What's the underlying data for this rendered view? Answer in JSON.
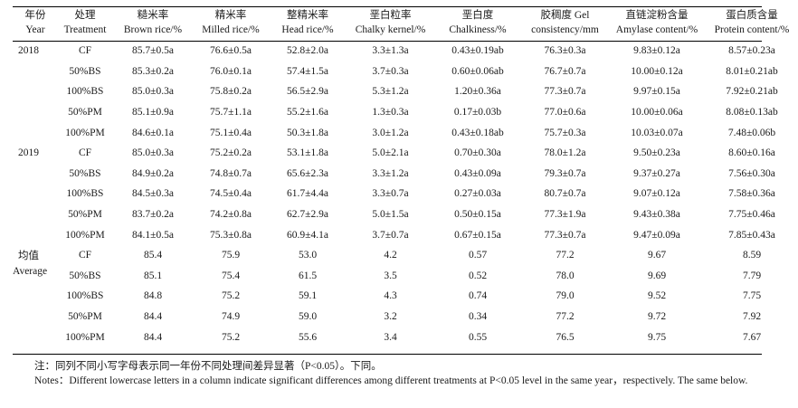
{
  "header": {
    "year": {
      "cn": "年份",
      "en": "Year"
    },
    "treatment": {
      "cn": "处理",
      "en": "Treatment"
    },
    "brown": {
      "cn": "糙米率",
      "en": "Brown rice/%"
    },
    "milled": {
      "cn": "精米率",
      "en": "Milled rice/%"
    },
    "head": {
      "cn": "整精米率",
      "en": "Head rice/%"
    },
    "chalky_kernel": {
      "cn": "垩白粒率",
      "en": "Chalky kernel/%"
    },
    "chalkiness": {
      "cn": "垩白度",
      "en": "Chalkiness/%"
    },
    "gel": {
      "cn": "胶稠度 Gel",
      "en": "consistency/mm"
    },
    "amylose": {
      "cn": "直链淀粉含量",
      "en": "Amylase content/%"
    },
    "protein": {
      "cn": "蛋白质含量",
      "en": "Protein content/%"
    }
  },
  "groups": [
    {
      "year": "2018",
      "year_en": "",
      "rows": [
        {
          "treatment": "CF",
          "values": [
            "85.7±0.5a",
            "76.6±0.5a",
            "52.8±2.0a",
            "3.3±1.3a",
            "0.43±0.19ab",
            "76.3±0.3a",
            "9.83±0.12a",
            "8.57±0.23a"
          ]
        },
        {
          "treatment": "50%BS",
          "values": [
            "85.3±0.2a",
            "76.0±0.1a",
            "57.4±1.5a",
            "3.7±0.3a",
            "0.60±0.06ab",
            "76.7±0.7a",
            "10.00±0.12a",
            "8.01±0.21ab"
          ]
        },
        {
          "treatment": "100%BS",
          "values": [
            "85.0±0.3a",
            "75.8±0.2a",
            "56.5±2.9a",
            "5.3±1.2a",
            "1.20±0.36a",
            "77.3±0.7a",
            "9.97±0.15a",
            "7.92±0.21ab"
          ]
        },
        {
          "treatment": "50%PM",
          "values": [
            "85.1±0.9a",
            "75.7±1.1a",
            "55.2±1.6a",
            "1.3±0.3a",
            "0.17±0.03b",
            "77.0±0.6a",
            "10.00±0.06a",
            "8.08±0.13ab"
          ]
        },
        {
          "treatment": "100%PM",
          "values": [
            "84.6±0.1a",
            "75.1±0.4a",
            "50.3±1.8a",
            "3.0±1.2a",
            "0.43±0.18ab",
            "75.7±0.3a",
            "10.03±0.07a",
            "7.48±0.06b"
          ]
        }
      ]
    },
    {
      "year": "2019",
      "year_en": "",
      "rows": [
        {
          "treatment": "CF",
          "values": [
            "85.0±0.3a",
            "75.2±0.2a",
            "53.1±1.8a",
            "5.0±2.1a",
            "0.70±0.30a",
            "78.0±1.2a",
            "9.50±0.23a",
            "8.60±0.16a"
          ]
        },
        {
          "treatment": "50%BS",
          "values": [
            "84.9±0.2a",
            "74.8±0.7a",
            "65.6±2.3a",
            "3.3±1.2a",
            "0.43±0.09a",
            "79.3±0.7a",
            "9.37±0.27a",
            "7.56±0.30a"
          ]
        },
        {
          "treatment": "100%BS",
          "values": [
            "84.5±0.3a",
            "74.5±0.4a",
            "61.7±4.4a",
            "3.3±0.7a",
            "0.27±0.03a",
            "80.7±0.7a",
            "9.07±0.12a",
            "7.58±0.36a"
          ]
        },
        {
          "treatment": "50%PM",
          "values": [
            "83.7±0.2a",
            "74.2±0.8a",
            "62.7±2.9a",
            "5.0±1.5a",
            "0.50±0.15a",
            "77.3±1.9a",
            "9.43±0.38a",
            "7.75±0.46a"
          ]
        },
        {
          "treatment": "100%PM",
          "values": [
            "84.1±0.5a",
            "75.3±0.8a",
            "60.9±4.1a",
            "3.7±0.7a",
            "0.67±0.15a",
            "77.3±0.7a",
            "9.47±0.09a",
            "7.85±0.43a"
          ]
        }
      ]
    },
    {
      "year": "均值",
      "year_en": "Average",
      "rows": [
        {
          "treatment": "CF",
          "values": [
            "85.4",
            "75.9",
            "53.0",
            "4.2",
            "0.57",
            "77.2",
            "9.67",
            "8.59"
          ]
        },
        {
          "treatment": "50%BS",
          "values": [
            "85.1",
            "75.4",
            "61.5",
            "3.5",
            "0.52",
            "78.0",
            "9.69",
            "7.79"
          ]
        },
        {
          "treatment": "100%BS",
          "values": [
            "84.8",
            "75.2",
            "59.1",
            "4.3",
            "0.74",
            "79.0",
            "9.52",
            "7.75"
          ]
        },
        {
          "treatment": "50%PM",
          "values": [
            "84.4",
            "74.9",
            "59.0",
            "3.2",
            "0.34",
            "77.2",
            "9.72",
            "7.92"
          ]
        },
        {
          "treatment": "100%PM",
          "values": [
            "84.4",
            "75.2",
            "55.6",
            "3.4",
            "0.55",
            "76.5",
            "9.75",
            "7.67"
          ]
        }
      ]
    }
  ],
  "notes": {
    "cn": "注：同列不同小写字母表示同一年份不同处理间差异显著（P<0.05）。下同。",
    "en": "Notes：Different lowercase letters in a column indicate significant differences among different treatments at P<0.05 level in the same year，respectively. The same below."
  }
}
